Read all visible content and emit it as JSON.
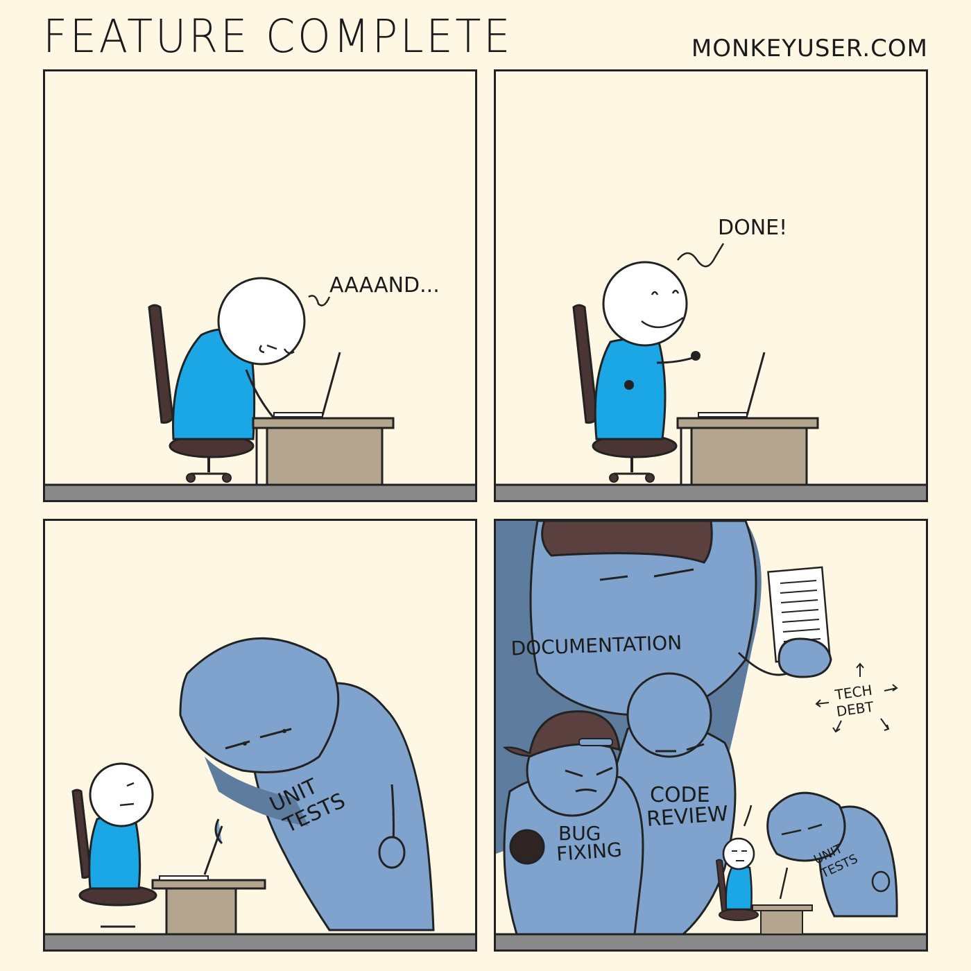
{
  "comic": {
    "title": "FEATURE COMPLETE",
    "site": "MONKEYUSER.COM"
  },
  "panel1": {
    "speech": "AAAAND..."
  },
  "panel2": {
    "speech": "DONE!"
  },
  "panel3": {
    "shirt_line1": "UNIT",
    "shirt_line2": "TESTS"
  },
  "panel4": {
    "documentation": "DOCUMENTATION",
    "code_review_line1": "CODE",
    "code_review_line2": "REVIEW",
    "bug_line1": "BUG",
    "bug_line2": "FIXING",
    "unit_line1": "UNIT",
    "unit_line2": "TESTS",
    "tech_line1": "TECH",
    "tech_line2": "DEBT"
  },
  "colors": {
    "background": "#fdf7e4",
    "shirt_blue": "#1ba6e6",
    "monster_blue": "#7fa3cc",
    "monster_dark": "#5e7d9e",
    "chair_brown": "#4a3434",
    "desk": "#b3a58e",
    "floor": "#8a8a8a"
  }
}
